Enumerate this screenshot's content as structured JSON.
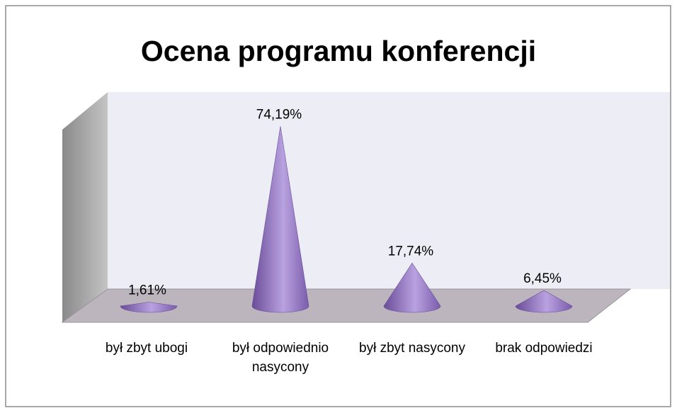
{
  "chart_data": {
    "type": "cone3d",
    "title": "Ocena programu konferencji",
    "categories": [
      "był zbyt ubogi",
      "był odpowiednio nasycony",
      "był zbyt nasycony",
      "brak odpowiedzi"
    ],
    "values": [
      1.61,
      74.19,
      17.74,
      6.45
    ],
    "value_labels": [
      "1,61%",
      "74,19%",
      "17,74%",
      "6,45%"
    ],
    "color": "#9477c4"
  }
}
